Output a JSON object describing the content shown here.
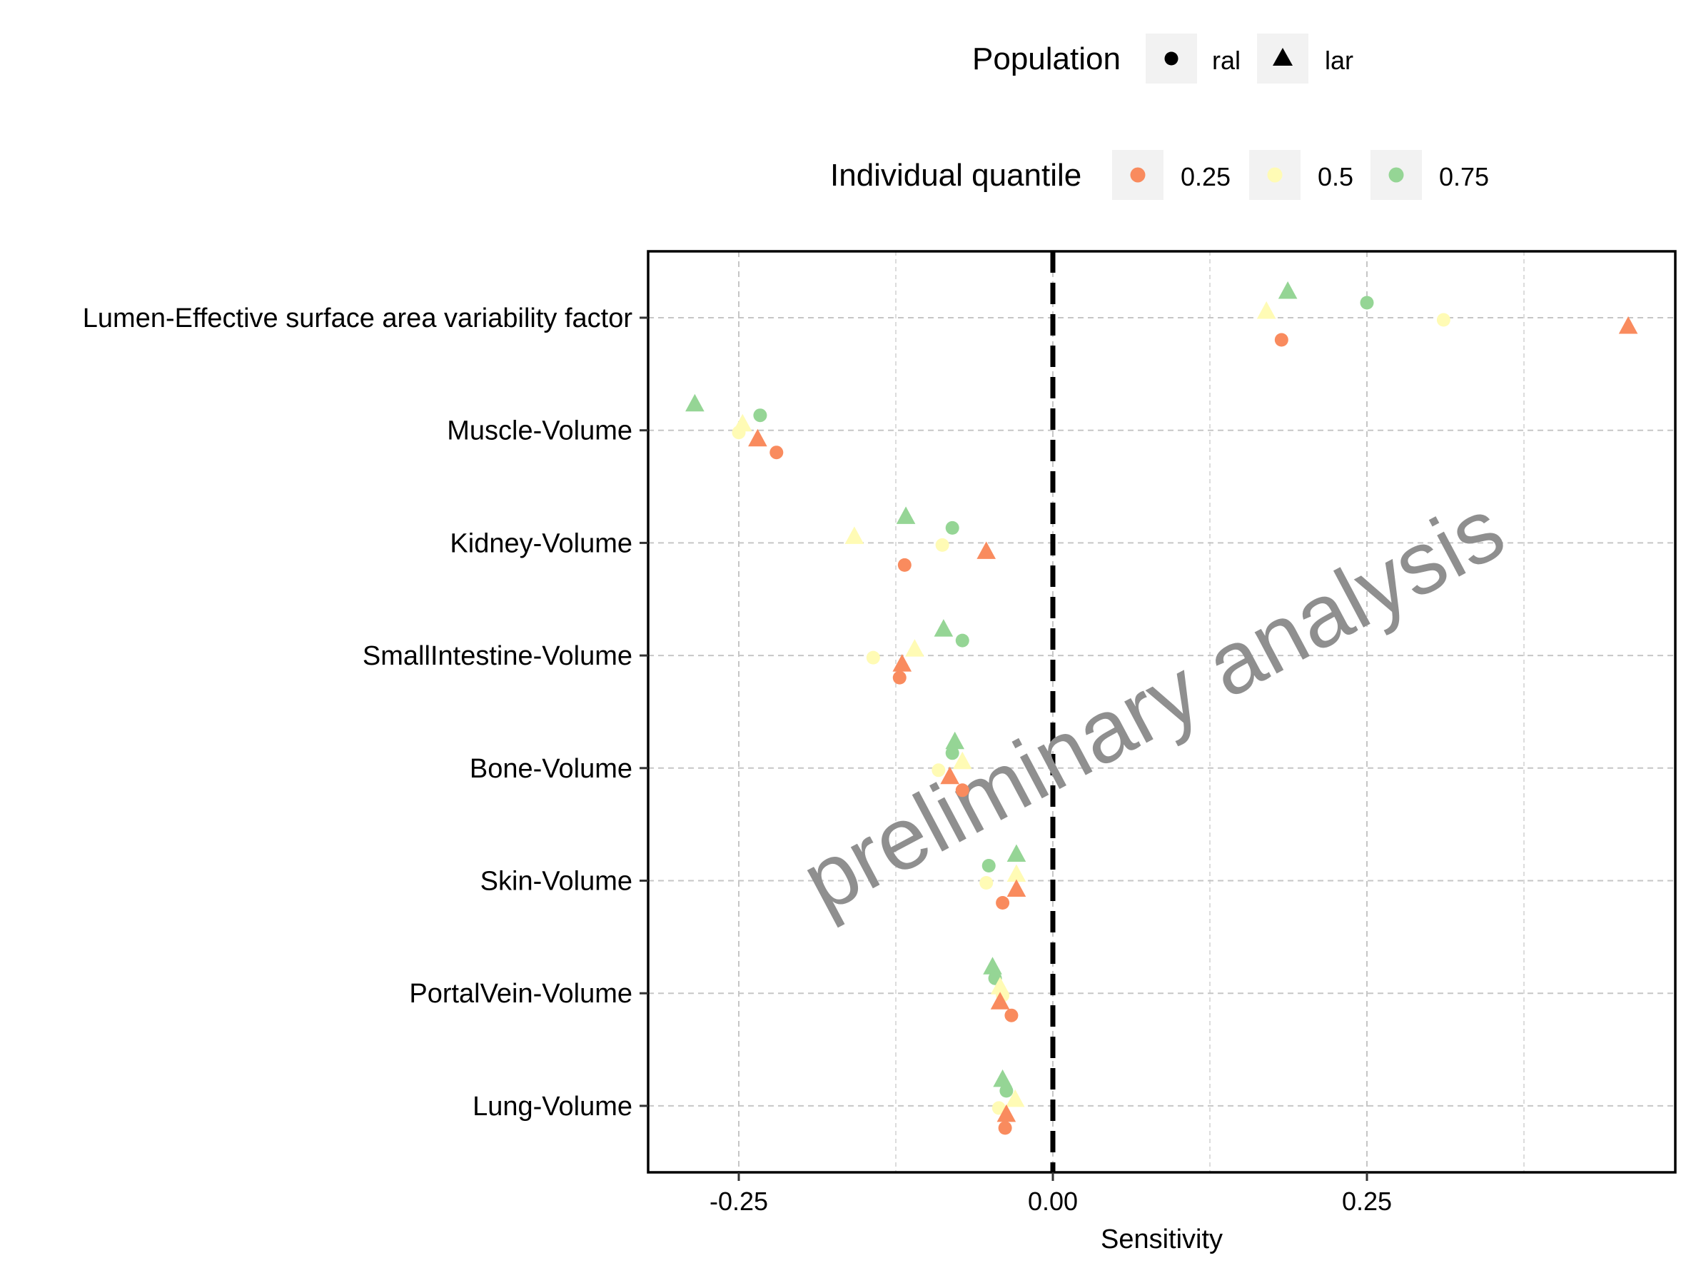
{
  "chart_data": {
    "type": "scatter",
    "title": "",
    "xlabel": "Sensitivity",
    "ylabel": "",
    "xlim": [
      -0.32,
      0.5
    ],
    "x_ticks": [
      {
        "value": -0.25,
        "label": "-0.25"
      },
      {
        "value": 0,
        "label": "0.00"
      },
      {
        "value": 0.25,
        "label": "0.25"
      }
    ],
    "categories": [
      "Lumen-Effective surface area variability factor",
      "Muscle-Volume",
      "Kidney-Volume",
      "SmallIntestine-Volume",
      "Bone-Volume",
      "Skin-Volume",
      "PortalVein-Volume",
      "Lung-Volume"
    ],
    "reference_line": {
      "x": 0,
      "style": "dashed"
    },
    "grid": true,
    "legend_position": "top",
    "legend_population": {
      "title": "Population",
      "items": [
        {
          "shape": "circle",
          "label": "ral"
        },
        {
          "shape": "triangle",
          "label": "lar"
        }
      ]
    },
    "legend_quantile": {
      "title": "Individual quantile",
      "items": [
        {
          "color": "#F98B5E",
          "label": "0.25"
        },
        {
          "color": "#FFFBB5",
          "label": "0.5"
        },
        {
          "color": "#95D595",
          "label": "0.75"
        }
      ]
    },
    "watermark": "preliminary analysis",
    "points": [
      {
        "category": 0,
        "x": 0.187,
        "population": "lar",
        "quantile": "0.75"
      },
      {
        "category": 0,
        "x": 0.25,
        "population": "ral",
        "quantile": "0.75"
      },
      {
        "category": 0,
        "x": 0.17,
        "population": "lar",
        "quantile": "0.5"
      },
      {
        "category": 0,
        "x": 0.311,
        "population": "ral",
        "quantile": "0.5"
      },
      {
        "category": 0,
        "x": 0.182,
        "population": "ral",
        "quantile": "0.25"
      },
      {
        "category": 0,
        "x": 0.458,
        "population": "lar",
        "quantile": "0.25"
      },
      {
        "category": 1,
        "x": -0.285,
        "population": "lar",
        "quantile": "0.75"
      },
      {
        "category": 1,
        "x": -0.233,
        "population": "ral",
        "quantile": "0.75"
      },
      {
        "category": 1,
        "x": -0.247,
        "population": "lar",
        "quantile": "0.5"
      },
      {
        "category": 1,
        "x": -0.25,
        "population": "ral",
        "quantile": "0.5"
      },
      {
        "category": 1,
        "x": -0.235,
        "population": "lar",
        "quantile": "0.25"
      },
      {
        "category": 1,
        "x": -0.22,
        "population": "ral",
        "quantile": "0.25"
      },
      {
        "category": 2,
        "x": -0.117,
        "population": "lar",
        "quantile": "0.75"
      },
      {
        "category": 2,
        "x": -0.08,
        "population": "ral",
        "quantile": "0.75"
      },
      {
        "category": 2,
        "x": -0.158,
        "population": "lar",
        "quantile": "0.5"
      },
      {
        "category": 2,
        "x": -0.088,
        "population": "ral",
        "quantile": "0.5"
      },
      {
        "category": 2,
        "x": -0.118,
        "population": "ral",
        "quantile": "0.25"
      },
      {
        "category": 2,
        "x": -0.053,
        "population": "lar",
        "quantile": "0.25"
      },
      {
        "category": 3,
        "x": -0.087,
        "population": "lar",
        "quantile": "0.75"
      },
      {
        "category": 3,
        "x": -0.072,
        "population": "ral",
        "quantile": "0.75"
      },
      {
        "category": 3,
        "x": -0.11,
        "population": "lar",
        "quantile": "0.5"
      },
      {
        "category": 3,
        "x": -0.143,
        "population": "ral",
        "quantile": "0.5"
      },
      {
        "category": 3,
        "x": -0.12,
        "population": "lar",
        "quantile": "0.25"
      },
      {
        "category": 3,
        "x": -0.122,
        "population": "ral",
        "quantile": "0.25"
      },
      {
        "category": 4,
        "x": -0.078,
        "population": "lar",
        "quantile": "0.75"
      },
      {
        "category": 4,
        "x": -0.08,
        "population": "ral",
        "quantile": "0.75"
      },
      {
        "category": 4,
        "x": -0.072,
        "population": "lar",
        "quantile": "0.5"
      },
      {
        "category": 4,
        "x": -0.091,
        "population": "ral",
        "quantile": "0.5"
      },
      {
        "category": 4,
        "x": -0.082,
        "population": "lar",
        "quantile": "0.25"
      },
      {
        "category": 4,
        "x": -0.072,
        "population": "ral",
        "quantile": "0.25"
      },
      {
        "category": 5,
        "x": -0.029,
        "population": "lar",
        "quantile": "0.75"
      },
      {
        "category": 5,
        "x": -0.051,
        "population": "ral",
        "quantile": "0.75"
      },
      {
        "category": 5,
        "x": -0.029,
        "population": "lar",
        "quantile": "0.5"
      },
      {
        "category": 5,
        "x": -0.053,
        "population": "ral",
        "quantile": "0.5"
      },
      {
        "category": 5,
        "x": -0.029,
        "population": "lar",
        "quantile": "0.25"
      },
      {
        "category": 5,
        "x": -0.04,
        "population": "ral",
        "quantile": "0.25"
      },
      {
        "category": 6,
        "x": -0.048,
        "population": "lar",
        "quantile": "0.75"
      },
      {
        "category": 6,
        "x": -0.046,
        "population": "ral",
        "quantile": "0.75"
      },
      {
        "category": 6,
        "x": -0.042,
        "population": "lar",
        "quantile": "0.5"
      },
      {
        "category": 6,
        "x": -0.04,
        "population": "ral",
        "quantile": "0.5"
      },
      {
        "category": 6,
        "x": -0.042,
        "population": "lar",
        "quantile": "0.25"
      },
      {
        "category": 6,
        "x": -0.033,
        "population": "ral",
        "quantile": "0.25"
      },
      {
        "category": 7,
        "x": -0.04,
        "population": "lar",
        "quantile": "0.75"
      },
      {
        "category": 7,
        "x": -0.037,
        "population": "ral",
        "quantile": "0.75"
      },
      {
        "category": 7,
        "x": -0.03,
        "population": "lar",
        "quantile": "0.5"
      },
      {
        "category": 7,
        "x": -0.043,
        "population": "ral",
        "quantile": "0.5"
      },
      {
        "category": 7,
        "x": -0.037,
        "population": "lar",
        "quantile": "0.25"
      },
      {
        "category": 7,
        "x": -0.038,
        "population": "ral",
        "quantile": "0.25"
      }
    ]
  }
}
